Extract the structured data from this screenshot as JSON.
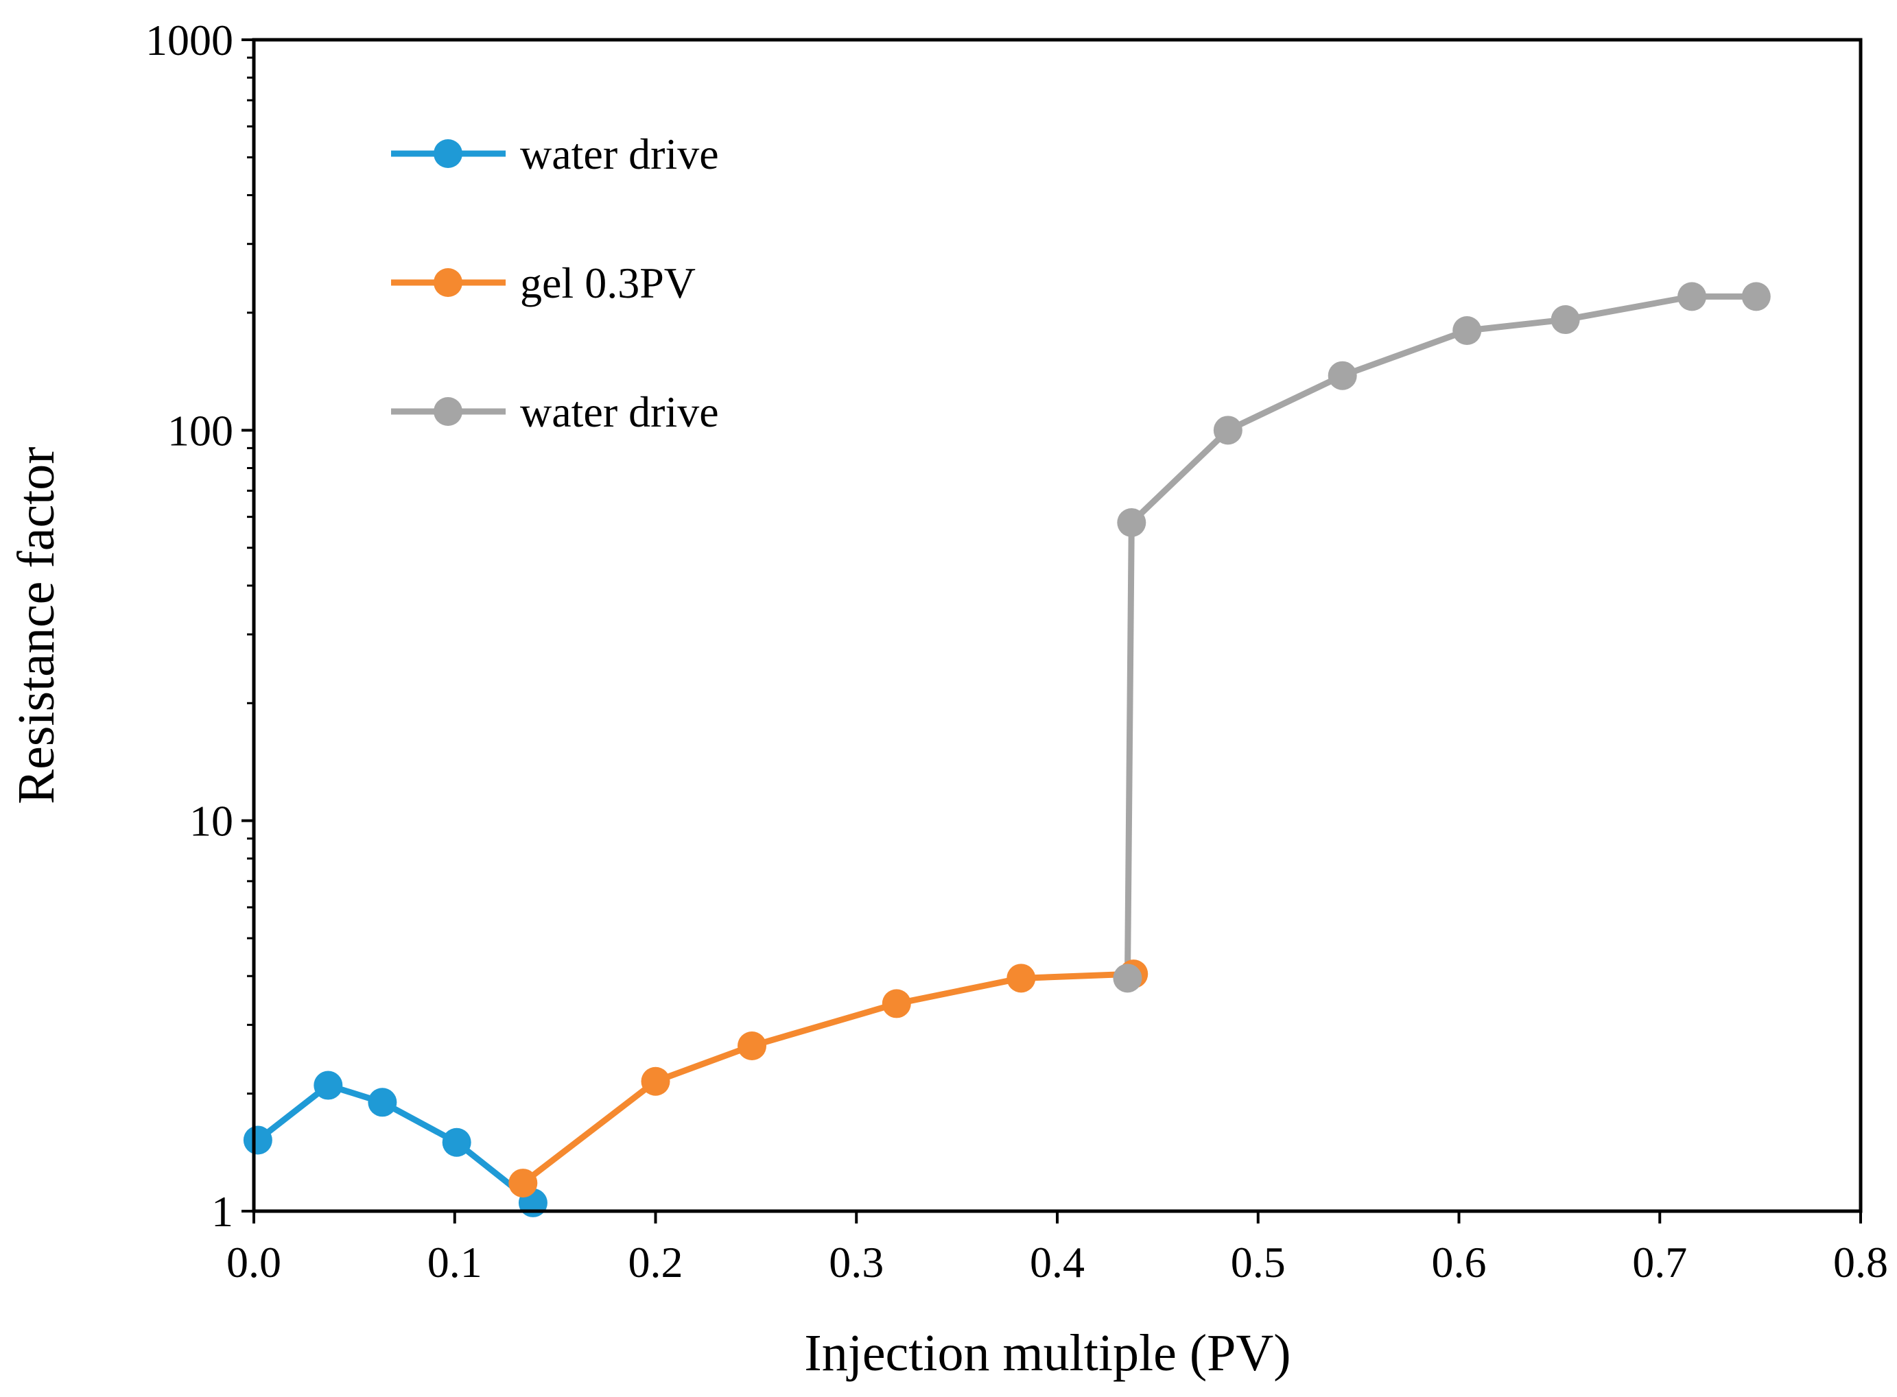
{
  "chart_data": {
    "type": "line",
    "title": "",
    "xlabel": "Injection multiple (PV)",
    "ylabel": "Resistance factor",
    "xlim": [
      0.0,
      0.8
    ],
    "ylim": [
      1,
      1000
    ],
    "yscale": "log",
    "grid": false,
    "legend_position": "top-left",
    "x_ticks": [
      0.0,
      0.1,
      0.2,
      0.3,
      0.4,
      0.5,
      0.6,
      0.7,
      0.8
    ],
    "x_tick_labels": [
      "0.0",
      "0.1",
      "0.2",
      "0.3",
      "0.4",
      "0.5",
      "0.6",
      "0.7",
      "0.8"
    ],
    "y_ticks": [
      1,
      10,
      100,
      1000
    ],
    "y_tick_labels": [
      "1",
      "10",
      "100",
      "1000"
    ],
    "series": [
      {
        "name": "water drive",
        "color": "#1f9ad6",
        "points": [
          {
            "x": 0.002,
            "y": 1.52
          },
          {
            "x": 0.037,
            "y": 2.1
          },
          {
            "x": 0.064,
            "y": 1.9
          },
          {
            "x": 0.101,
            "y": 1.5
          },
          {
            "x": 0.139,
            "y": 1.05
          }
        ]
      },
      {
        "name": "gel 0.3PV",
        "color": "#f5892f",
        "points": [
          {
            "x": 0.134,
            "y": 1.18
          },
          {
            "x": 0.2,
            "y": 2.15
          },
          {
            "x": 0.248,
            "y": 2.65
          },
          {
            "x": 0.32,
            "y": 3.4
          },
          {
            "x": 0.382,
            "y": 3.95
          },
          {
            "x": 0.438,
            "y": 4.05
          }
        ]
      },
      {
        "name": "water drive",
        "color": "#a5a5a5",
        "points": [
          {
            "x": 0.435,
            "y": 3.95
          },
          {
            "x": 0.437,
            "y": 58
          },
          {
            "x": 0.485,
            "y": 100
          },
          {
            "x": 0.542,
            "y": 138
          },
          {
            "x": 0.604,
            "y": 180
          },
          {
            "x": 0.653,
            "y": 192
          },
          {
            "x": 0.716,
            "y": 220
          },
          {
            "x": 0.748,
            "y": 220
          }
        ]
      }
    ]
  }
}
